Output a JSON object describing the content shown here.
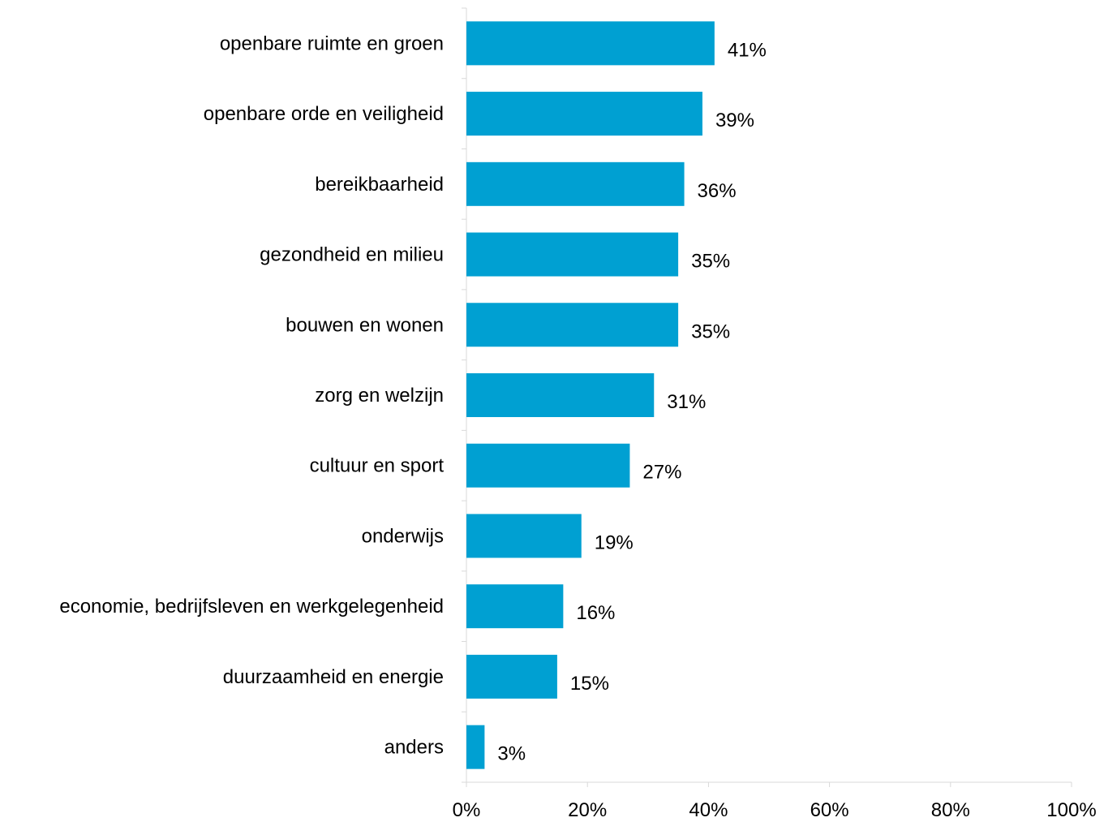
{
  "chart_data": {
    "type": "bar",
    "orientation": "horizontal",
    "categories": [
      "openbare ruimte en groen",
      "openbare orde en veiligheid",
      "bereikbaarheid",
      "gezondheid en milieu",
      "bouwen en wonen",
      "zorg en welzijn",
      "cultuur en sport",
      "onderwijs",
      "economie, bedrijfsleven en werkgelegenheid",
      "duurzaamheid en energie",
      "anders"
    ],
    "values": [
      41,
      39,
      36,
      35,
      35,
      31,
      27,
      19,
      16,
      15,
      3
    ],
    "value_labels": [
      "41%",
      "39%",
      "36%",
      "35%",
      "35%",
      "31%",
      "27%",
      "19%",
      "16%",
      "15%",
      "3%"
    ],
    "xlim": [
      0,
      100
    ],
    "xticks": [
      0,
      20,
      40,
      60,
      80,
      100
    ],
    "xtick_labels": [
      "0%",
      "20%",
      "40%",
      "60%",
      "80%",
      "100%"
    ],
    "title": "",
    "xlabel": "",
    "ylabel": "",
    "grid": false,
    "legend": "none",
    "bar_color": "#00A0D2",
    "axis_color": "#D9D9D9"
  }
}
